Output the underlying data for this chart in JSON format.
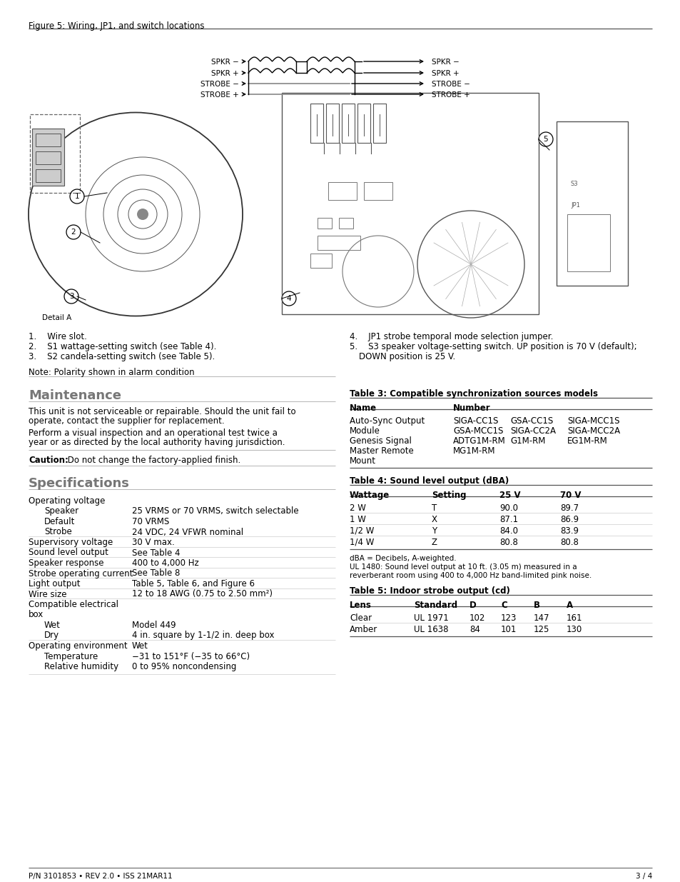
{
  "page_title": "Figure 5: Wiring, JP1, and switch locations",
  "footer_left": "P/N 3101853 • REV 2.0 • ISS 21MAR11",
  "footer_right": "3 / 4",
  "bg_color": "#ffffff",
  "text_color": "#000000",
  "section_color": "#777777",
  "maintenance_title": "Maintenance",
  "specifications_title": "Specifications",
  "notes_left": [
    [
      "1.",
      "Wire slot."
    ],
    [
      "2.",
      "S1 wattage-setting switch (see Table 4)."
    ],
    [
      "3.",
      "S2 candela-setting switch (see Table 5)."
    ]
  ],
  "notes_right_4": "JP1 strobe temporal mode selection jumper.",
  "notes_right_5a": "S3 speaker voltage-setting switch. UP position is 70 V (default);",
  "notes_right_5b": "DOWN position is 25 V.",
  "note_bottom": "Note: Polarity shown in alarm condition",
  "caution_bold": "Caution:",
  "caution_rest": " Do not change the factory-applied finish.",
  "maintenance_p1a": "This unit is not serviceable or repairable. Should the unit fail to",
  "maintenance_p1b": "operate, contact the supplier for replacement.",
  "maintenance_p2a": "Perform a visual inspection and an operational test twice a",
  "maintenance_p2b": "year or as directed by the local authority having jurisdiction.",
  "specs_label_col": 40,
  "specs_value_col": 185,
  "specs_rows": [
    {
      "label": "Operating voltage",
      "value": "",
      "indent": false,
      "divider_before": true
    },
    {
      "label": "Speaker",
      "value": "25 VRMS or 70 VRMS, switch selectable",
      "indent": true,
      "divider_before": false
    },
    {
      "label": "Default",
      "value": "70 VRMS",
      "indent": true,
      "divider_before": false
    },
    {
      "label": "Strobe",
      "value": "24 VDC, 24 VFWR nominal",
      "indent": true,
      "divider_before": false
    },
    {
      "label": "Supervisory voltage",
      "value": "30 V max.",
      "indent": false,
      "divider_before": true
    },
    {
      "label": "Sound level output",
      "value": "See Table 4",
      "indent": false,
      "divider_before": true
    },
    {
      "label": "Speaker response",
      "value": "400 to 4,000 Hz",
      "indent": false,
      "divider_before": true
    },
    {
      "label": "Strobe operating current",
      "value": "See Table 8",
      "indent": false,
      "divider_before": true
    },
    {
      "label": "Light output",
      "value": "Table 5, Table 6, and Figure 6",
      "indent": false,
      "divider_before": true
    },
    {
      "label": "Wire size",
      "value": "12 to 18 AWG (0.75 to 2.50 mm²)",
      "indent": false,
      "divider_before": true
    },
    {
      "label": "Compatible electrical",
      "value": "",
      "indent": false,
      "divider_before": true
    },
    {
      "label": "box",
      "value": "",
      "indent": false,
      "divider_before": false
    },
    {
      "label": "Wet",
      "value": "Model 449",
      "indent": true,
      "divider_before": false
    },
    {
      "label": "Dry",
      "value": "4 in. square by 1-1/2 in. deep box",
      "indent": true,
      "divider_before": false
    },
    {
      "label": "Operating environment",
      "value": "Wet",
      "indent": false,
      "divider_before": true
    },
    {
      "label": "Temperature",
      "value": "−31 to 151°F (−35 to 66°C)",
      "indent": true,
      "divider_before": false
    },
    {
      "label": "Relative humidity",
      "value": "0 to 95% noncondensing",
      "indent": true,
      "divider_before": false
    }
  ],
  "table3_title": "Table 3: Compatible synchronization sources models",
  "table3_rows": [
    [
      "Auto-Sync Output",
      "SIGA-CC1S",
      "GSA-CC1S",
      "SIGA-MCC1S"
    ],
    [
      "Module",
      "GSA-MCC1S",
      "SIGA-CC2A",
      "SIGA-MCC2A"
    ],
    [
      "Genesis Signal",
      "ADTG1M-RM",
      "G1M-RM",
      "EG1M-RM"
    ],
    [
      "Master Remote",
      "MG1M-RM",
      "",
      ""
    ],
    [
      "Mount",
      "",
      "",
      ""
    ]
  ],
  "table4_title": "Table 4: Sound level output (dBA)",
  "table4_rows": [
    [
      "2 W",
      "T",
      "90.0",
      "89.7"
    ],
    [
      "1 W",
      "X",
      "87.1",
      "86.9"
    ],
    [
      "1/2 W",
      "Y",
      "84.0",
      "83.9"
    ],
    [
      "1/4 W",
      "Z",
      "80.8",
      "80.8"
    ]
  ],
  "table4_note1": "dBA = Decibels, A-weighted.",
  "table4_note2": "UL 1480: Sound level output at 10 ft. (3.05 m) measured in a",
  "table4_note3": "reverberant room using 400 to 4,000 Hz band-limited pink noise.",
  "table5_title": "Table 5: Indoor strobe output (cd)",
  "table5_rows": [
    [
      "Clear",
      "UL 1971",
      "102",
      "123",
      "147",
      "161"
    ],
    [
      "Amber",
      "UL 1638",
      "84",
      "101",
      "125",
      "130"
    ]
  ],
  "wiring_labels_left": [
    "SPKR -",
    "SPKR +",
    "STROBE -",
    "STROBE +"
  ],
  "wiring_labels_right": [
    "SPKR -",
    "SPKR +",
    "STROBE -",
    "STROBE +"
  ]
}
